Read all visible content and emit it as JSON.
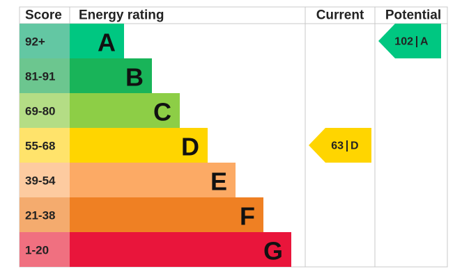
{
  "header": {
    "score": "Score",
    "rating": "Energy rating",
    "current": "Current",
    "potential": "Potential"
  },
  "bands": [
    {
      "score": "92+",
      "letter": "A",
      "color": "#00c781",
      "score_color": "#63c7a3"
    },
    {
      "score": "81-91",
      "letter": "B",
      "color": "#19b459",
      "score_color": "#6cc68f"
    },
    {
      "score": "69-80",
      "letter": "C",
      "color": "#8dce46",
      "score_color": "#b4dd85"
    },
    {
      "score": "55-68",
      "letter": "D",
      "color": "#ffd500",
      "score_color": "#ffe36b"
    },
    {
      "score": "39-54",
      "letter": "E",
      "color": "#fcaa65",
      "score_color": "#fdcba0"
    },
    {
      "score": "21-38",
      "letter": "F",
      "color": "#ef8023",
      "score_color": "#f4ab6e"
    },
    {
      "score": "1-20",
      "letter": "G",
      "color": "#e9153b",
      "score_color": "#f07080"
    }
  ],
  "current": {
    "value": 63,
    "band": "D"
  },
  "potential": {
    "value": 102,
    "band": "A"
  }
}
